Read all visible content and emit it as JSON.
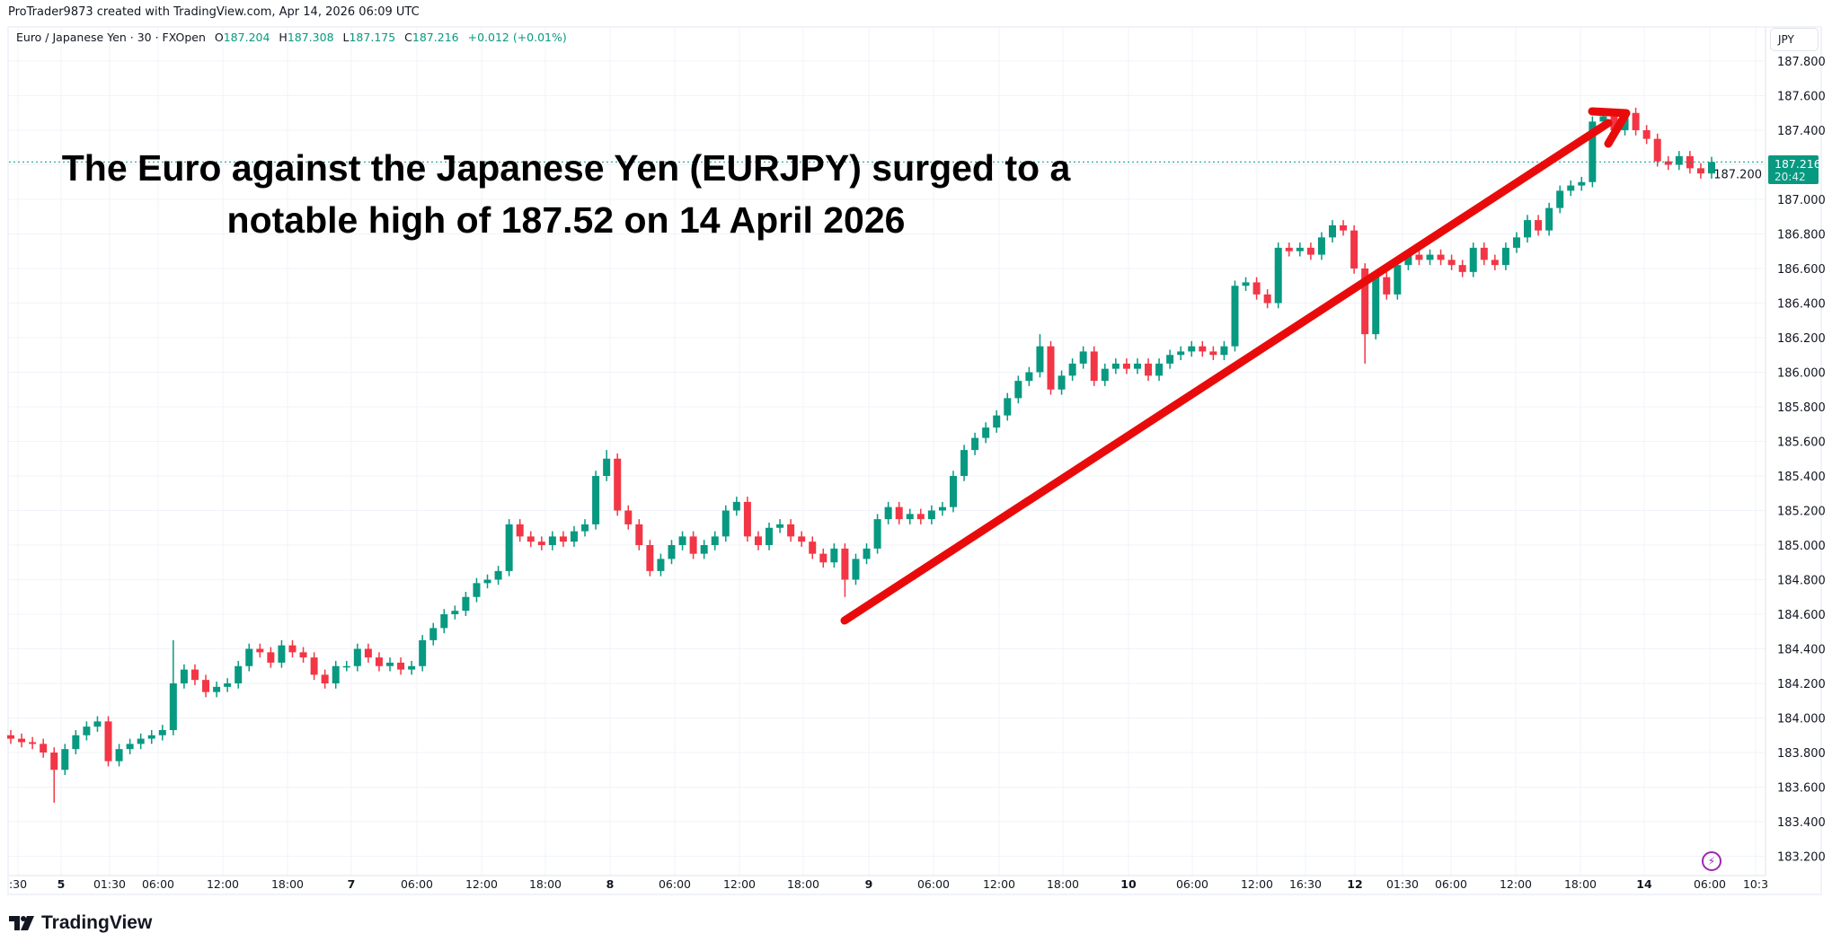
{
  "header": {
    "credit": "ProTrader9873 created with TradingView.com, Apr 14, 2026 06:09 UTC"
  },
  "legend": {
    "symbol": "Euro / Japanese Yen · 30 · FXOpen",
    "o_label": "O",
    "o": "187.204",
    "h_label": "H",
    "h": "187.308",
    "l_label": "L",
    "l": "187.175",
    "c_label": "C",
    "c": "187.216",
    "change": "+0.012 (+0.01%)"
  },
  "annotation": {
    "line1": "The Euro against the Japanese Yen (EURJPY) surged to a",
    "line2": "notable high of 187.52 on 14 April 2026",
    "arrow_color": "#e90b0b"
  },
  "price_axis": {
    "currency": "JPY",
    "last_price": "187.216",
    "countdown": "20:42"
  },
  "logo": {
    "text": "TradingView"
  },
  "icons": {
    "alert": "lightning-icon"
  },
  "colors": {
    "up": "#089981",
    "down": "#f23645",
    "grid": "#f0f3fa",
    "last_price": "#089981"
  },
  "chart_data": {
    "type": "candlestick",
    "ylim": [
      183.2,
      187.8
    ],
    "grid": true,
    "y_ticks": [
      "187.800",
      "187.600",
      "187.400",
      "187.200",
      "187.000",
      "186.800",
      "186.600",
      "186.400",
      "186.200",
      "186.000",
      "185.800",
      "185.600",
      "185.400",
      "185.200",
      "185.000",
      "184.800",
      "184.600",
      "184.400",
      "184.200",
      "184.000",
      "183.800",
      "183.600",
      "183.400",
      "183.200"
    ],
    "x_ticks": [
      ":30",
      "5",
      "01:30",
      "06:00",
      "12:00",
      "18:00",
      "7",
      "06:00",
      "12:00",
      "18:00",
      "8",
      "06:00",
      "12:00",
      "18:00",
      "9",
      "06:00",
      "12:00",
      "18:00",
      "10",
      "06:00",
      "12:00",
      "16:30",
      "12",
      "01:30",
      "06:00",
      "12:00",
      "18:00",
      "14",
      "06:00",
      "10:3"
    ],
    "x_tick_bold": [
      false,
      true,
      false,
      false,
      false,
      false,
      true,
      false,
      false,
      false,
      true,
      false,
      false,
      false,
      true,
      false,
      false,
      false,
      true,
      false,
      false,
      false,
      true,
      false,
      false,
      false,
      false,
      true,
      false,
      false
    ],
    "first_open": 183.9,
    "closes": [
      183.88,
      183.86,
      183.85,
      183.8,
      183.7,
      183.82,
      183.9,
      183.95,
      183.98,
      183.75,
      183.82,
      183.85,
      183.88,
      183.9,
      183.93,
      184.2,
      184.28,
      184.22,
      184.15,
      184.18,
      184.2,
      184.3,
      184.4,
      184.38,
      184.32,
      184.42,
      184.38,
      184.35,
      184.25,
      184.2,
      184.3,
      184.3,
      184.4,
      184.35,
      184.3,
      184.32,
      184.28,
      184.3,
      184.45,
      184.52,
      184.6,
      184.62,
      184.7,
      184.78,
      184.8,
      184.85,
      185.12,
      185.05,
      185.02,
      185.0,
      185.05,
      185.02,
      185.08,
      185.12,
      185.4,
      185.5,
      185.2,
      185.12,
      185.0,
      184.85,
      184.92,
      185.0,
      185.05,
      184.95,
      185.0,
      185.05,
      185.2,
      185.25,
      185.05,
      185.0,
      185.1,
      185.12,
      185.05,
      185.02,
      184.95,
      184.9,
      184.98,
      184.8,
      184.92,
      184.98,
      185.15,
      185.22,
      185.15,
      185.18,
      185.15,
      185.2,
      185.22,
      185.4,
      185.55,
      185.62,
      185.68,
      185.75,
      185.85,
      185.95,
      186.0,
      186.15,
      185.9,
      185.98,
      186.05,
      186.12,
      185.95,
      186.02,
      186.05,
      186.02,
      186.05,
      185.98,
      186.05,
      186.1,
      186.12,
      186.15,
      186.12,
      186.1,
      186.15,
      186.5,
      186.52,
      186.45,
      186.4,
      186.72,
      186.7,
      186.72,
      186.68,
      186.78,
      186.85,
      186.82,
      186.6,
      186.22,
      186.55,
      186.45,
      186.62,
      186.68,
      186.65,
      186.68,
      186.65,
      186.62,
      186.58,
      186.72,
      186.65,
      186.62,
      186.72,
      186.78,
      186.88,
      186.82,
      186.95,
      187.05,
      187.08,
      187.1,
      187.45,
      187.48,
      187.4,
      187.5,
      187.4,
      187.35,
      187.22,
      187.2,
      187.25,
      187.18,
      187.15,
      187.216
    ],
    "notable_extremes": [
      {
        "bar": 4,
        "low": 183.51
      },
      {
        "bar": 15,
        "high": 184.45
      },
      {
        "bar": 55,
        "high": 185.55
      },
      {
        "bar": 77,
        "low": 184.7
      },
      {
        "bar": 95,
        "high": 186.22
      },
      {
        "bar": 125,
        "low": 186.05
      },
      {
        "bar": 149,
        "high": 187.52
      }
    ],
    "last_price": 187.216
  }
}
